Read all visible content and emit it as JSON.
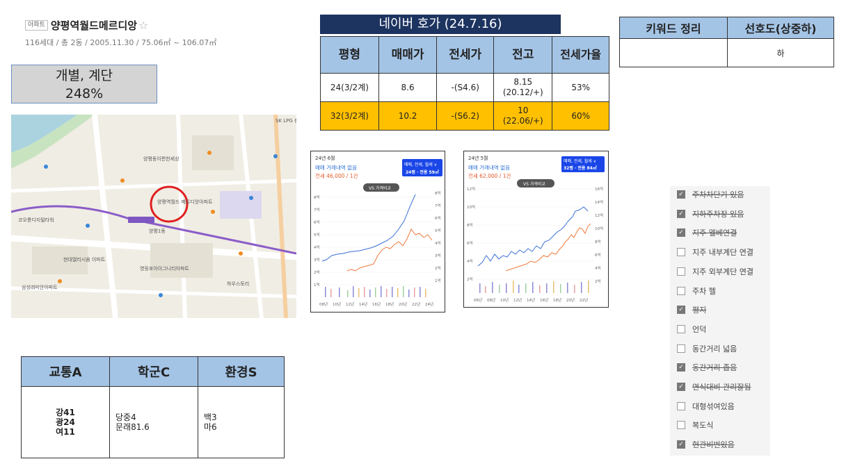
{
  "apartment": {
    "badge": "아파트",
    "name": "양평역월드메르디앙",
    "star": "☆",
    "info": "116세대 / 총 2동 / 2005.11.30 / 75.06㎡ ~ 106.07㎡"
  },
  "grade_box": {
    "line1": "개별, 계단",
    "line2": "248%"
  },
  "naver": {
    "title": "네이버 호가 (24.7.16)",
    "headers": [
      "평형",
      "매매가",
      "전세가",
      "전고",
      "전세가율"
    ],
    "rows": [
      {
        "type": "24(3/2계)",
        "sale": "8.6",
        "jeonse": "-(S4.6)",
        "high1": "8.15",
        "high2": "(20.12/+)",
        "ratio": "53%"
      },
      {
        "type": "32(3/2계)",
        "sale": "10.2",
        "jeonse": "-(S6.2)",
        "high1": "10",
        "high2": "(22.06/+)",
        "ratio": "60%"
      }
    ]
  },
  "keywords": {
    "header1": "키워드 정리",
    "header2": "선호도(상중하)",
    "value1": "",
    "value2": "하"
  },
  "charts": [
    {
      "date": "24년 6월",
      "no_trade": "매매 거래내역 없음",
      "jeonse_price": "전세 46,000 / 1건",
      "tab_label": "매매, 전세, 월세 ∨",
      "size_label": "24평 · 전용 59㎡",
      "compare": "VS 가격비교",
      "y_left": [
        "8억",
        "7억",
        "6억",
        "5억",
        "4억",
        "3억",
        "2억",
        "1억"
      ],
      "y_right": [
        "8억",
        "7억",
        "6억",
        "5억",
        "4억",
        "3억",
        "2억",
        "1억"
      ],
      "x_ticks": [
        "08년",
        "10년",
        "12년",
        "14년",
        "16년",
        "18년",
        "20년",
        "22년",
        "24년"
      ]
    },
    {
      "date": "24년 5월",
      "no_trade": "매매 거래내역 없음",
      "jeonse_price": "전세 62,000 / 1건",
      "tab_label": "매매, 전세, 월세 ∨",
      "size_label": "32평 · 전용 84㎡",
      "compare": "VS 가격비교",
      "y_left": [
        "12억",
        "10억",
        "8억",
        "6억",
        "4억",
        "2억"
      ],
      "y_right": [
        "16억",
        "14억",
        "12억",
        "10억",
        "8억",
        "6억",
        "4억",
        "2억"
      ],
      "x_ticks": [
        "06년",
        "08년",
        "10년",
        "12년",
        "14년",
        "16년",
        "18년",
        "20년",
        "22년"
      ]
    }
  ],
  "checklist": [
    {
      "label": "주차차단기 있음",
      "checked": true,
      "strike": true
    },
    {
      "label": "지하주차장 있음",
      "checked": true,
      "strike": true
    },
    {
      "label": "지주 엘베연결",
      "checked": true,
      "strike": true
    },
    {
      "label": "지주 내부계단 연결",
      "checked": false,
      "strike": false
    },
    {
      "label": "지주 외부계단 연결",
      "checked": false,
      "strike": false
    },
    {
      "label": "주차 헬",
      "checked": false,
      "strike": false
    },
    {
      "label": "평지",
      "checked": true,
      "strike": true
    },
    {
      "label": "언덕",
      "checked": false,
      "strike": false
    },
    {
      "label": "동간거리 넓음",
      "checked": false,
      "strike": false
    },
    {
      "label": "동간거리 좁음",
      "checked": true,
      "strike": true
    },
    {
      "label": "연식대비 관리잘됨",
      "checked": true,
      "strike": true
    },
    {
      "label": "대형섞여있음",
      "checked": false,
      "strike": false
    },
    {
      "label": "복도식",
      "checked": false,
      "strike": false
    },
    {
      "label": "현관비번있음",
      "checked": true,
      "strike": true
    }
  ],
  "grades": {
    "headers": [
      "교통A",
      "학군C",
      "환경S"
    ],
    "transport": [
      "강41",
      "광24",
      "여11"
    ],
    "school": [
      "당중4",
      "문래81.6"
    ],
    "environment": [
      "백3",
      "마6"
    ]
  },
  "map": {
    "labels": [
      "SK LPG 충전소",
      "양평역월드 메르디앙아파트",
      "양평1동",
      "영등포아이그니티아파트",
      "현대엘리시움 이파트",
      "양평동이편한세상",
      "삼성래미안아파트",
      "하우스토리",
      "코오롱디지털타워"
    ]
  }
}
